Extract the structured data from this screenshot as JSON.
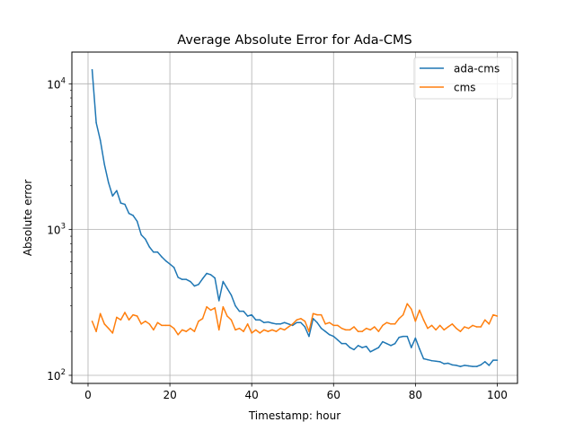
{
  "chart_data": {
    "type": "line",
    "title": "Average Absolute Error for Ada-CMS",
    "xlabel": "Timestamp: hour",
    "ylabel": "Absolute error",
    "yscale": "log",
    "xlim": [
      -3.95,
      104.95
    ],
    "ylim": [
      88,
      16500
    ],
    "xticks": [
      0,
      20,
      40,
      60,
      80,
      100
    ],
    "xtick_labels": [
      "0",
      "20",
      "40",
      "60",
      "80",
      "100"
    ],
    "yticks": [
      100,
      1000,
      10000
    ],
    "ytick_labels": [
      {
        "base": "10",
        "exp": "2"
      },
      {
        "base": "10",
        "exp": "3"
      },
      {
        "base": "10",
        "exp": "4"
      }
    ],
    "grid": true,
    "legend_position": "upper right",
    "series": [
      {
        "name": "ada-cms",
        "color": "#1f77b4",
        "x": [
          1,
          2,
          3,
          4,
          5,
          6,
          7,
          8,
          9,
          10,
          11,
          12,
          13,
          14,
          15,
          16,
          17,
          18,
          19,
          20,
          21,
          22,
          23,
          24,
          25,
          26,
          27,
          28,
          29,
          30,
          31,
          32,
          33,
          34,
          35,
          36,
          37,
          38,
          39,
          40,
          41,
          42,
          43,
          44,
          45,
          46,
          47,
          48,
          49,
          50,
          51,
          52,
          53,
          54,
          55,
          56,
          57,
          58,
          59,
          60,
          61,
          62,
          63,
          64,
          65,
          66,
          67,
          68,
          69,
          70,
          71,
          72,
          73,
          74,
          75,
          76,
          77,
          78,
          79,
          80,
          81,
          82,
          83,
          84,
          85,
          86,
          87,
          88,
          89,
          90,
          91,
          92,
          93,
          94,
          95,
          96,
          97,
          98,
          99,
          100
        ],
        "values": [
          12500,
          5400,
          4100,
          2800,
          2100,
          1700,
          1850,
          1520,
          1490,
          1290,
          1250,
          1140,
          920,
          860,
          760,
          700,
          700,
          650,
          610,
          580,
          550,
          470,
          455,
          455,
          440,
          410,
          420,
          460,
          500,
          490,
          465,
          325,
          440,
          395,
          355,
          300,
          275,
          275,
          255,
          260,
          240,
          240,
          230,
          232,
          228,
          225,
          225,
          230,
          225,
          220,
          230,
          230,
          215,
          185,
          245,
          230,
          210,
          200,
          190,
          185,
          175,
          165,
          165,
          155,
          150,
          160,
          155,
          158,
          145,
          150,
          155,
          170,
          165,
          160,
          165,
          182,
          185,
          185,
          155,
          180,
          152,
          130,
          128,
          126,
          125,
          124,
          120,
          121,
          118,
          117,
          115,
          117,
          116,
          115,
          115,
          118,
          124,
          117,
          127,
          127
        ]
      },
      {
        "name": "cms",
        "color": "#ff7f0e",
        "x": [
          1,
          2,
          3,
          4,
          5,
          6,
          7,
          8,
          9,
          10,
          11,
          12,
          13,
          14,
          15,
          16,
          17,
          18,
          19,
          20,
          21,
          22,
          23,
          24,
          25,
          26,
          27,
          28,
          29,
          30,
          31,
          32,
          33,
          34,
          35,
          36,
          37,
          38,
          39,
          40,
          41,
          42,
          43,
          44,
          45,
          46,
          47,
          48,
          49,
          50,
          51,
          52,
          53,
          54,
          55,
          56,
          57,
          58,
          59,
          60,
          61,
          62,
          63,
          64,
          65,
          66,
          67,
          68,
          69,
          70,
          71,
          72,
          73,
          74,
          75,
          76,
          77,
          78,
          79,
          80,
          81,
          82,
          83,
          84,
          85,
          86,
          87,
          88,
          89,
          90,
          91,
          92,
          93,
          94,
          95,
          96,
          97,
          98,
          99,
          100
        ],
        "values": [
          235,
          200,
          265,
          225,
          210,
          195,
          250,
          240,
          270,
          240,
          260,
          255,
          225,
          235,
          225,
          205,
          230,
          220,
          220,
          220,
          210,
          190,
          205,
          200,
          210,
          200,
          235,
          245,
          295,
          280,
          290,
          205,
          295,
          255,
          240,
          205,
          210,
          200,
          225,
          195,
          205,
          195,
          205,
          200,
          205,
          200,
          210,
          205,
          215,
          225,
          240,
          245,
          235,
          200,
          265,
          260,
          260,
          225,
          230,
          220,
          220,
          210,
          205,
          205,
          215,
          200,
          200,
          210,
          205,
          215,
          200,
          220,
          230,
          225,
          225,
          245,
          260,
          310,
          285,
          235,
          280,
          240,
          210,
          220,
          205,
          220,
          205,
          215,
          225,
          210,
          200,
          215,
          210,
          220,
          215,
          215,
          240,
          225,
          260,
          255
        ]
      }
    ]
  }
}
